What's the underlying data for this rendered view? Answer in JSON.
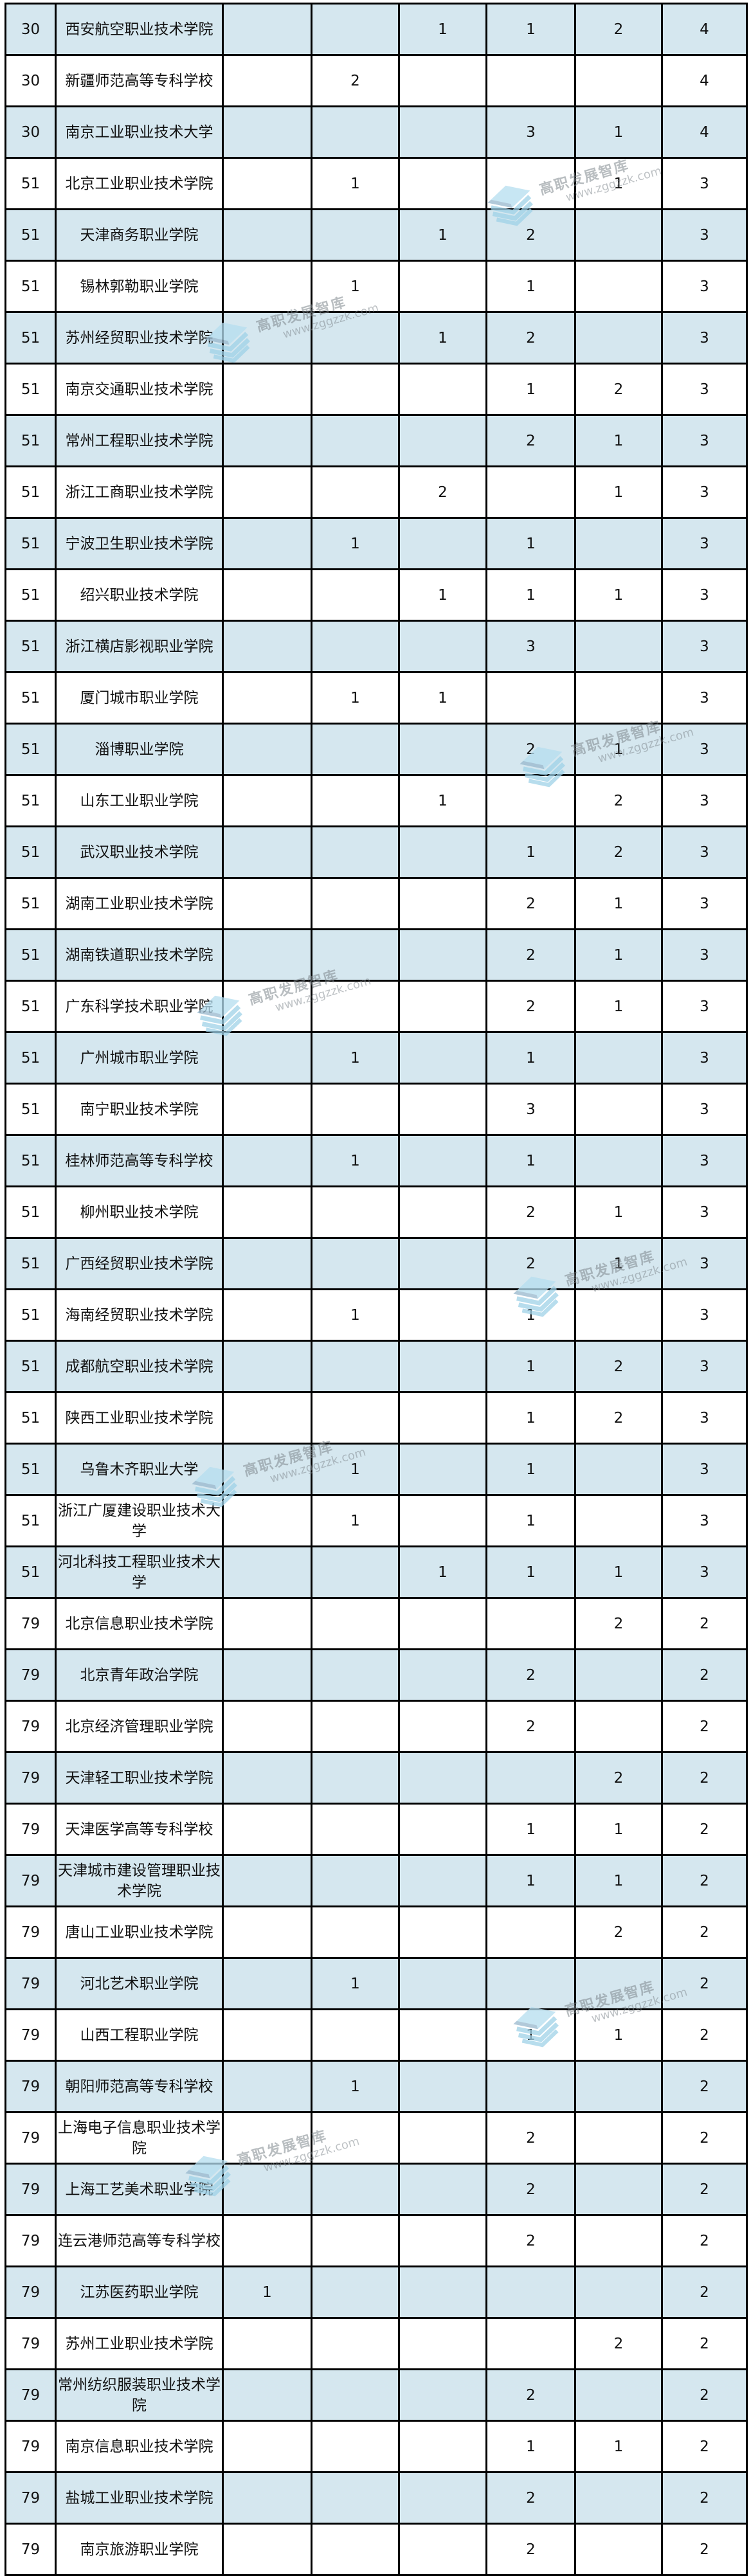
{
  "page": {
    "background_color": "#ffffff",
    "border_color": "#000000",
    "row_alt_color": "#d5e7ef",
    "row_base_color": "#ffffff"
  },
  "table": {
    "rows": [
      {
        "rank": "30",
        "school": "西安航空职业技术学院",
        "values": [
          "",
          "",
          "1",
          "1",
          "2"
        ],
        "total": "4"
      },
      {
        "rank": "30",
        "school": "新疆师范高等专科学校",
        "values": [
          "",
          "2",
          "",
          "",
          ""
        ],
        "total": "4"
      },
      {
        "rank": "30",
        "school": "南京工业职业技术大学",
        "values": [
          "",
          "",
          "",
          "3",
          "1"
        ],
        "total": "4"
      },
      {
        "rank": "51",
        "school": "北京工业职业技术学院",
        "values": [
          "",
          "1",
          "",
          "",
          "1"
        ],
        "total": "3"
      },
      {
        "rank": "51",
        "school": "天津商务职业学院",
        "values": [
          "",
          "",
          "1",
          "2",
          ""
        ],
        "total": "3"
      },
      {
        "rank": "51",
        "school": "锡林郭勒职业学院",
        "values": [
          "",
          "1",
          "",
          "1",
          ""
        ],
        "total": "3"
      },
      {
        "rank": "51",
        "school": "苏州经贸职业技术学院",
        "values": [
          "",
          "",
          "1",
          "2",
          ""
        ],
        "total": "3"
      },
      {
        "rank": "51",
        "school": "南京交通职业技术学院",
        "values": [
          "",
          "",
          "",
          "1",
          "2"
        ],
        "total": "3"
      },
      {
        "rank": "51",
        "school": "常州工程职业技术学院",
        "values": [
          "",
          "",
          "",
          "2",
          "1"
        ],
        "total": "3"
      },
      {
        "rank": "51",
        "school": "浙江工商职业技术学院",
        "values": [
          "",
          "",
          "2",
          "",
          "1"
        ],
        "total": "3"
      },
      {
        "rank": "51",
        "school": "宁波卫生职业技术学院",
        "values": [
          "",
          "1",
          "",
          "1",
          ""
        ],
        "total": "3"
      },
      {
        "rank": "51",
        "school": "绍兴职业技术学院",
        "values": [
          "",
          "",
          "1",
          "1",
          "1"
        ],
        "total": "3"
      },
      {
        "rank": "51",
        "school": "浙江横店影视职业学院",
        "values": [
          "",
          "",
          "",
          "3",
          ""
        ],
        "total": "3"
      },
      {
        "rank": "51",
        "school": "厦门城市职业学院",
        "values": [
          "",
          "1",
          "1",
          "",
          ""
        ],
        "total": "3"
      },
      {
        "rank": "51",
        "school": "淄博职业学院",
        "values": [
          "",
          "",
          "",
          "2",
          "1"
        ],
        "total": "3"
      },
      {
        "rank": "51",
        "school": "山东工业职业学院",
        "values": [
          "",
          "",
          "1",
          "",
          "2"
        ],
        "total": "3"
      },
      {
        "rank": "51",
        "school": "武汉职业技术学院",
        "values": [
          "",
          "",
          "",
          "1",
          "2"
        ],
        "total": "3"
      },
      {
        "rank": "51",
        "school": "湖南工业职业技术学院",
        "values": [
          "",
          "",
          "",
          "2",
          "1"
        ],
        "total": "3"
      },
      {
        "rank": "51",
        "school": "湖南铁道职业技术学院",
        "values": [
          "",
          "",
          "",
          "2",
          "1"
        ],
        "total": "3"
      },
      {
        "rank": "51",
        "school": "广东科学技术职业学院",
        "values": [
          "",
          "",
          "",
          "2",
          "1"
        ],
        "total": "3"
      },
      {
        "rank": "51",
        "school": "广州城市职业学院",
        "values": [
          "",
          "1",
          "",
          "1",
          ""
        ],
        "total": "3"
      },
      {
        "rank": "51",
        "school": "南宁职业技术学院",
        "values": [
          "",
          "",
          "",
          "3",
          ""
        ],
        "total": "3"
      },
      {
        "rank": "51",
        "school": "桂林师范高等专科学校",
        "values": [
          "",
          "1",
          "",
          "1",
          ""
        ],
        "total": "3"
      },
      {
        "rank": "51",
        "school": "柳州职业技术学院",
        "values": [
          "",
          "",
          "",
          "2",
          "1"
        ],
        "total": "3"
      },
      {
        "rank": "51",
        "school": "广西经贸职业技术学院",
        "values": [
          "",
          "",
          "",
          "2",
          "1"
        ],
        "total": "3"
      },
      {
        "rank": "51",
        "school": "海南经贸职业技术学院",
        "values": [
          "",
          "1",
          "",
          "1",
          ""
        ],
        "total": "3"
      },
      {
        "rank": "51",
        "school": "成都航空职业技术学院",
        "values": [
          "",
          "",
          "",
          "1",
          "2"
        ],
        "total": "3"
      },
      {
        "rank": "51",
        "school": "陕西工业职业技术学院",
        "values": [
          "",
          "",
          "",
          "1",
          "2"
        ],
        "total": "3"
      },
      {
        "rank": "51",
        "school": "乌鲁木齐职业大学",
        "values": [
          "",
          "1",
          "",
          "1",
          ""
        ],
        "total": "3"
      },
      {
        "rank": "51",
        "school": "浙江广厦建设职业技术大学",
        "values": [
          "",
          "1",
          "",
          "1",
          ""
        ],
        "total": "3"
      },
      {
        "rank": "51",
        "school": "河北科技工程职业技术大学",
        "values": [
          "",
          "",
          "1",
          "1",
          "1"
        ],
        "total": "3"
      },
      {
        "rank": "79",
        "school": "北京信息职业技术学院",
        "values": [
          "",
          "",
          "",
          "",
          "2"
        ],
        "total": "2"
      },
      {
        "rank": "79",
        "school": "北京青年政治学院",
        "values": [
          "",
          "",
          "",
          "2",
          ""
        ],
        "total": "2"
      },
      {
        "rank": "79",
        "school": "北京经济管理职业学院",
        "values": [
          "",
          "",
          "",
          "2",
          ""
        ],
        "total": "2"
      },
      {
        "rank": "79",
        "school": "天津轻工职业技术学院",
        "values": [
          "",
          "",
          "",
          "",
          "2"
        ],
        "total": "2"
      },
      {
        "rank": "79",
        "school": "天津医学高等专科学校",
        "values": [
          "",
          "",
          "",
          "1",
          "1"
        ],
        "total": "2"
      },
      {
        "rank": "79",
        "school": "天津城市建设管理职业技术学院",
        "values": [
          "",
          "",
          "",
          "1",
          "1"
        ],
        "total": "2"
      },
      {
        "rank": "79",
        "school": "唐山工业职业技术学院",
        "values": [
          "",
          "",
          "",
          "",
          "2"
        ],
        "total": "2"
      },
      {
        "rank": "79",
        "school": "河北艺术职业学院",
        "values": [
          "",
          "1",
          "",
          "",
          ""
        ],
        "total": "2"
      },
      {
        "rank": "79",
        "school": "山西工程职业学院",
        "values": [
          "",
          "",
          "",
          "1",
          "1"
        ],
        "total": "2"
      },
      {
        "rank": "79",
        "school": "朝阳师范高等专科学校",
        "values": [
          "",
          "1",
          "",
          "",
          ""
        ],
        "total": "2"
      },
      {
        "rank": "79",
        "school": "上海电子信息职业技术学院",
        "values": [
          "",
          "",
          "",
          "2",
          ""
        ],
        "total": "2"
      },
      {
        "rank": "79",
        "school": "上海工艺美术职业学院",
        "values": [
          "",
          "",
          "",
          "2",
          ""
        ],
        "total": "2"
      },
      {
        "rank": "79",
        "school": "连云港师范高等专科学校",
        "values": [
          "",
          "",
          "",
          "2",
          ""
        ],
        "total": "2"
      },
      {
        "rank": "79",
        "school": "江苏医药职业学院",
        "values": [
          "1",
          "",
          "",
          "",
          ""
        ],
        "total": "2"
      },
      {
        "rank": "79",
        "school": "苏州工业职业技术学院",
        "values": [
          "",
          "",
          "",
          "",
          "2"
        ],
        "total": "2"
      },
      {
        "rank": "79",
        "school": "常州纺织服装职业技术学院",
        "values": [
          "",
          "",
          "",
          "2",
          ""
        ],
        "total": "2"
      },
      {
        "rank": "79",
        "school": "南京信息职业技术学院",
        "values": [
          "",
          "",
          "",
          "1",
          "1"
        ],
        "total": "2"
      },
      {
        "rank": "79",
        "school": "盐城工业职业技术学院",
        "values": [
          "",
          "",
          "",
          "2",
          ""
        ],
        "total": "2"
      },
      {
        "rank": "79",
        "school": "南京旅游职业学院",
        "values": [
          "",
          "",
          "",
          "2",
          ""
        ],
        "total": "2"
      }
    ]
  },
  "watermark": {
    "title": "高职发展智库",
    "url": "www.zggzzk.com",
    "logo_icon": "layers-logo-icon",
    "text_color": "#7d868c",
    "logo_color_light": "#b5def0",
    "logo_color_mid": "#9fd2e8",
    "logo_color_dark": "#8ca8be"
  }
}
